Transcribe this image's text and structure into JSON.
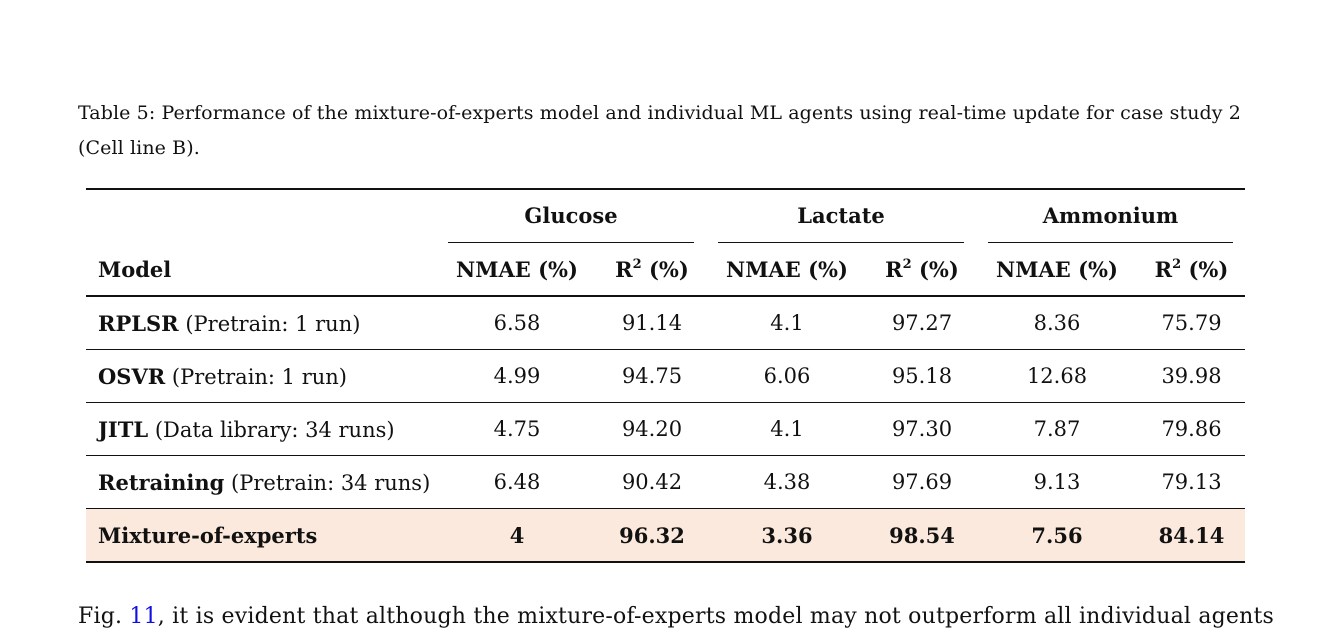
{
  "caption": "Table 5: Performance of the mixture-of-experts model and individual ML agents using real-time update for case study 2 (Cell line B).",
  "table": {
    "groups": [
      "Glucose",
      "Lactate",
      "Ammonium"
    ],
    "model_header": "Model",
    "metric_headers": {
      "nmae": "NMAE (%)",
      "r2_base": "R",
      "r2_sup": "2",
      "r2_unit": " (%)"
    },
    "rows": [
      {
        "name": "RPLSR",
        "note": "(Pretrain: 1 run)",
        "values": [
          "6.58",
          "91.14",
          "4.1",
          "97.27",
          "8.36",
          "75.79"
        ]
      },
      {
        "name": "OSVR",
        "note": "(Pretrain: 1 run)",
        "values": [
          "4.99",
          "94.75",
          "6.06",
          "95.18",
          "12.68",
          "39.98"
        ]
      },
      {
        "name": "JITL",
        "note": "(Data library: 34 runs)",
        "values": [
          "4.75",
          "94.20",
          "4.1",
          "97.30",
          "7.87",
          "79.86"
        ]
      },
      {
        "name": "Retraining",
        "note": "(Pretrain: 34 runs)",
        "values": [
          "6.48",
          "90.42",
          "4.38",
          "97.69",
          "9.13",
          "79.13"
        ]
      },
      {
        "name": "Mixture-of-experts",
        "note": "",
        "values": [
          "4",
          "96.32",
          "3.36",
          "98.54",
          "7.56",
          "84.14"
        ]
      }
    ],
    "highlight_color": "#fbe9dd"
  },
  "body_text": {
    "prefix": "Fig. ",
    "ref": "11",
    "suffix": ", it is evident that although the mixture-of-experts model may not outperform all individual agents"
  }
}
